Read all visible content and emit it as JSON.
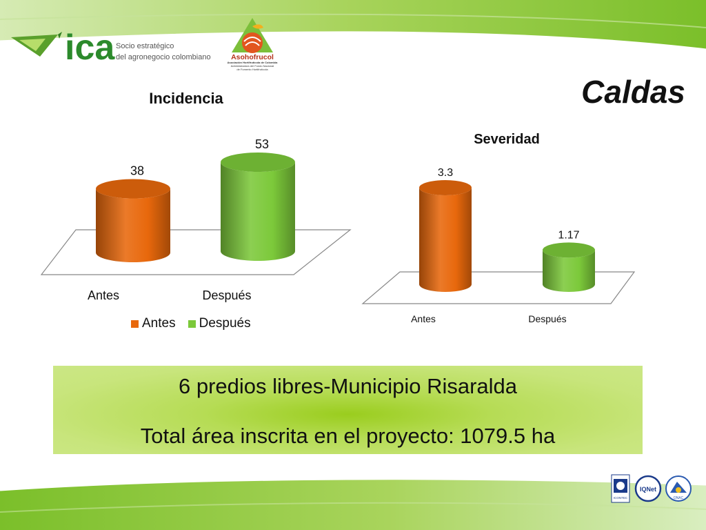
{
  "header": {
    "ica_logo_text": "ica",
    "ica_tagline_line1": "Socio estratégico",
    "ica_tagline_line2": "del agronegocio colombiano",
    "aso_logo_name": "Asohofrucol",
    "aso_logo_line1": "Asociación Hortifrutícola de Colombia",
    "aso_logo_line2": "Administradora del Fondo Nacional",
    "aso_logo_line3": "de Fomento Hortifrutícola"
  },
  "page_title": "Caldas",
  "colors": {
    "antes": "#e8680c",
    "despues": "#7cc93a",
    "band_green": "#8cc63f"
  },
  "chart_data": [
    {
      "type": "bar",
      "title": "Incidencia",
      "categories": [
        "Antes",
        "Después"
      ],
      "values": [
        38,
        53
      ],
      "value_labels": [
        "38",
        "53"
      ],
      "legend": [
        "Antes",
        "Después"
      ],
      "legend_placement": "bottom",
      "grid": false,
      "style": "3d-cylinder"
    },
    {
      "type": "bar",
      "title": "Severidad",
      "categories": [
        "Antes",
        "Después"
      ],
      "values": [
        3.3,
        1.17
      ],
      "value_labels": [
        "3.3",
        "1.17"
      ],
      "grid": false,
      "style": "3d-cylinder"
    }
  ],
  "info_box": {
    "line1": "6 predios libres-Municipio Risaralda",
    "line2": "Total área inscrita en el proyecto: 1079.5 ha"
  },
  "footer": {
    "cert1": "ICONTEC",
    "cert2": "IQNet",
    "cert3": "ONAC"
  }
}
